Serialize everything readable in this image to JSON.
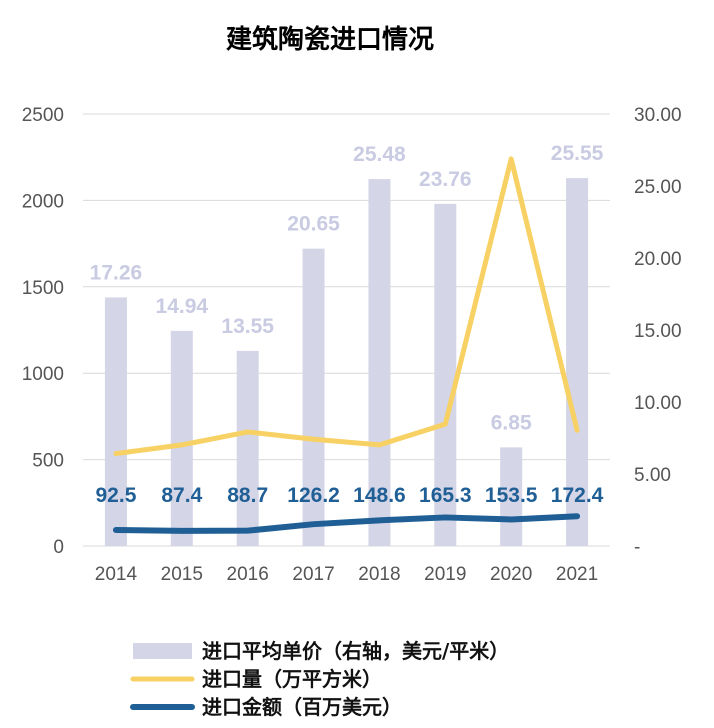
{
  "chart_data": {
    "type": "bar",
    "title": "建筑陶瓷进口情况",
    "categories": [
      "2014",
      "2015",
      "2016",
      "2017",
      "2018",
      "2019",
      "2020",
      "2021"
    ],
    "y_left": {
      "range": [
        0,
        2500
      ],
      "ticks": [
        "0",
        "500",
        "1000",
        "1500",
        "2000",
        "2500"
      ]
    },
    "y_right": {
      "range": [
        0,
        30
      ],
      "ticks": [
        "-",
        "5.00",
        "10.00",
        "15.00",
        "20.00",
        "25.00",
        "30.00"
      ]
    },
    "grid": "horizontal",
    "legend_position": "bottom",
    "series": [
      {
        "name": "进口平均单价（右轴，美元/平米）",
        "type": "bar",
        "axis": "right",
        "color": "#d4d5e7",
        "label_color": "#c9cbe2",
        "values": [
          17.26,
          14.94,
          13.55,
          20.65,
          25.48,
          23.76,
          6.85,
          25.55
        ],
        "labels": [
          "17.26",
          "14.94",
          "13.55",
          "20.65",
          "25.48",
          "23.76",
          "6.85",
          "25.55"
        ]
      },
      {
        "name": "进口量（万平方米）",
        "type": "line",
        "axis": "left",
        "color": "#f7d163",
        "values": [
          535,
          585,
          660,
          618,
          585,
          705,
          2240,
          670
        ]
      },
      {
        "name": "进口金额（百万美元）",
        "type": "line",
        "axis": "left",
        "color": "#1f5f95",
        "values": [
          92.5,
          87.4,
          88.7,
          126.2,
          148.6,
          165.3,
          153.5,
          172.4
        ],
        "labels": [
          "92.5",
          "87.4",
          "88.7",
          "126.2",
          "148.6",
          "165.3",
          "153.5",
          "172.4"
        ]
      }
    ]
  }
}
